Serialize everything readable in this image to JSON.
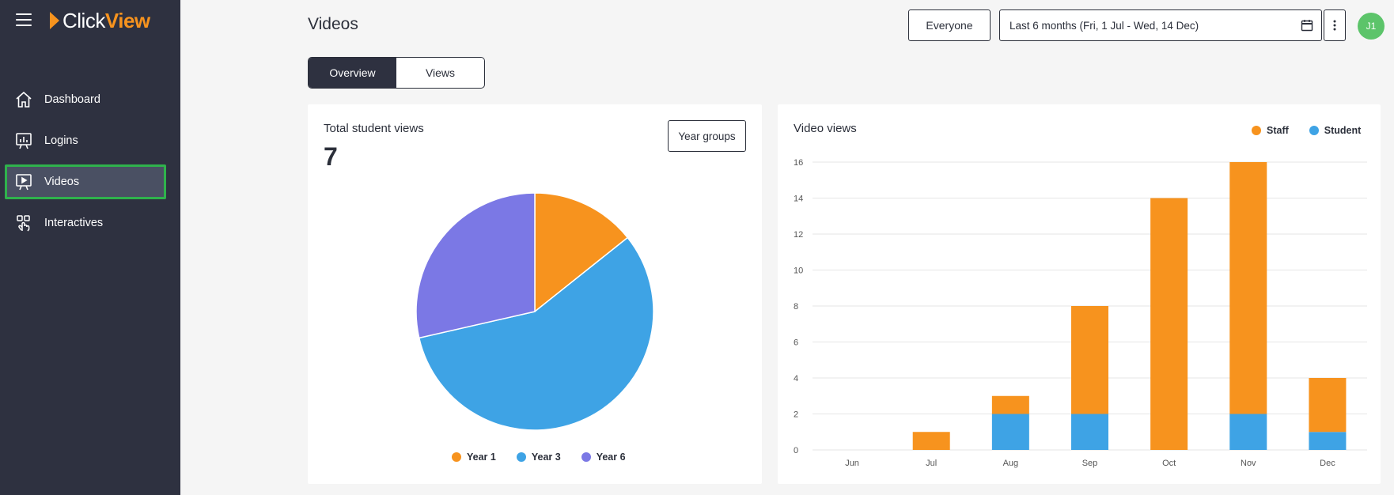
{
  "app": {
    "logo_click": "Click",
    "logo_view": "View"
  },
  "sidebar": {
    "items": [
      {
        "label": "Dashboard",
        "icon": "home-icon"
      },
      {
        "label": "Logins",
        "icon": "presentation-chart-icon"
      },
      {
        "label": "Videos",
        "icon": "video-screen-icon",
        "active": true
      },
      {
        "label": "Interactives",
        "icon": "hand-pointer-icon"
      }
    ]
  },
  "header": {
    "title": "Videos",
    "audience_button": "Everyone",
    "date_range": "Last 6 months (Fri, 1 Jul - Wed, 14 Dec)",
    "avatar_initials": "J1"
  },
  "tabs": [
    {
      "label": "Overview",
      "active": true
    },
    {
      "label": "Views",
      "active": false
    }
  ],
  "left_card": {
    "title": "Total student views",
    "total": "7",
    "group_button": "Year groups"
  },
  "right_card": {
    "title": "Video views"
  },
  "colors": {
    "staff": "#f7931e",
    "student": "#3ea3e5",
    "year1": "#f7931e",
    "year3": "#3ea3e5",
    "year6": "#7b78e5",
    "sidebar": "#2e3140",
    "active_outline": "#2fb24c"
  },
  "chart_data": [
    {
      "type": "pie",
      "labels": [
        "Year 1",
        "Year 3",
        "Year 6"
      ],
      "values": [
        1,
        4,
        2
      ],
      "legend": "bottom"
    },
    {
      "type": "bar",
      "stacked": true,
      "categories": [
        "Jun",
        "Jul",
        "Aug",
        "Sep",
        "Oct",
        "Nov",
        "Dec"
      ],
      "series": [
        {
          "name": "Student",
          "values": [
            0,
            0,
            2,
            2,
            0,
            2,
            1
          ]
        },
        {
          "name": "Staff",
          "values": [
            0,
            1,
            1,
            6,
            14,
            14,
            3
          ]
        }
      ],
      "yticks": [
        0,
        2,
        4,
        6,
        8,
        10,
        12,
        14,
        16
      ],
      "ylim": [
        0,
        16
      ],
      "grid": true,
      "legend": "top-right"
    }
  ]
}
